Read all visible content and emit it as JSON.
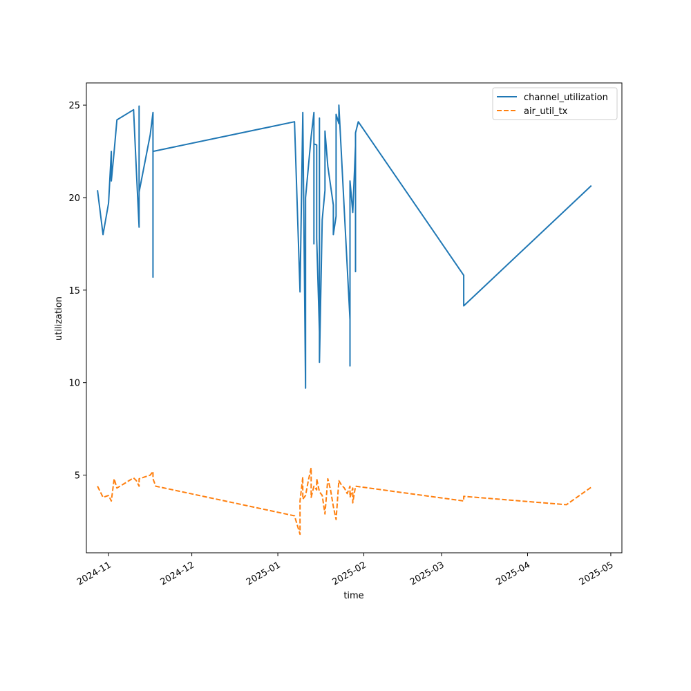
{
  "chart_data": {
    "type": "line",
    "title": "",
    "xlabel": "time",
    "ylabel": "utilization",
    "x_is_date": true,
    "xlim": [
      "2024-10-24",
      "2025-05-05"
    ],
    "ylim": [
      0.8,
      26.2
    ],
    "xticks": [
      "2024-11-01",
      "2024-12-01",
      "2025-01-01",
      "2025-02-01",
      "2025-03-01",
      "2025-04-01",
      "2025-05-01"
    ],
    "xtick_labels": [
      "2024-11",
      "2024-12",
      "2025-01",
      "2025-02",
      "2025-03",
      "2025-04",
      "2025-05"
    ],
    "yticks": [
      5,
      10,
      15,
      20,
      25
    ],
    "ytick_labels": [
      "5",
      "10",
      "15",
      "20",
      "25"
    ],
    "grid": false,
    "legend": "top-right",
    "series": [
      {
        "name": "channel_utilization",
        "color": "#1f77b4",
        "style": "solid",
        "points": [
          [
            "2024-10-28",
            20.4
          ],
          [
            "2024-10-30",
            18.0
          ],
          [
            "2024-11-01",
            19.7
          ],
          [
            "2024-11-02",
            22.5
          ],
          [
            "2024-11-02",
            20.9
          ],
          [
            "2024-11-03",
            22.5
          ],
          [
            "2024-11-04",
            24.2
          ],
          [
            "2024-11-10",
            24.75
          ],
          [
            "2024-11-11",
            21.5
          ],
          [
            "2024-11-12",
            18.4
          ],
          [
            "2024-11-12",
            24.95
          ],
          [
            "2024-11-12",
            20.3
          ],
          [
            "2024-11-16",
            23.4
          ],
          [
            "2024-11-17",
            24.6
          ],
          [
            "2024-11-17",
            15.7
          ],
          [
            "2024-11-17",
            22.5
          ],
          [
            "2025-01-07",
            24.1
          ],
          [
            "2025-01-09",
            14.9
          ],
          [
            "2025-01-10",
            24.6
          ],
          [
            "2025-01-11",
            9.7
          ],
          [
            "2025-01-11",
            20.0
          ],
          [
            "2025-01-13",
            23.3
          ],
          [
            "2025-01-14",
            24.6
          ],
          [
            "2025-01-14",
            17.5
          ],
          [
            "2025-01-14",
            22.9
          ],
          [
            "2025-01-15",
            22.85
          ],
          [
            "2025-01-15",
            17.8
          ],
          [
            "2025-01-16",
            12.75
          ],
          [
            "2025-01-16",
            24.3
          ],
          [
            "2025-01-16",
            11.1
          ],
          [
            "2025-01-17",
            18.8
          ],
          [
            "2025-01-18",
            20.4
          ],
          [
            "2025-01-18",
            23.6
          ],
          [
            "2025-01-19",
            21.7
          ],
          [
            "2025-01-21",
            19.6
          ],
          [
            "2025-01-21",
            18.0
          ],
          [
            "2025-01-22",
            19.0
          ],
          [
            "2025-01-22",
            24.5
          ],
          [
            "2025-01-23",
            24.0
          ],
          [
            "2025-01-23",
            25.0
          ],
          [
            "2025-01-25",
            19.2
          ],
          [
            "2025-01-27",
            13.4
          ],
          [
            "2025-01-27",
            10.9
          ],
          [
            "2025-01-27",
            20.9
          ],
          [
            "2025-01-28",
            19.2
          ],
          [
            "2025-01-29",
            22.8
          ],
          [
            "2025-01-29",
            16.0
          ],
          [
            "2025-01-29",
            23.5
          ],
          [
            "2025-01-30",
            24.1
          ],
          [
            "2025-03-09",
            15.8
          ],
          [
            "2025-03-09",
            14.15
          ],
          [
            "2025-04-24",
            20.65
          ]
        ]
      },
      {
        "name": "air_util_tx",
        "color": "#ff7f0e",
        "style": "dashed",
        "points": [
          [
            "2024-10-28",
            4.4
          ],
          [
            "2024-10-30",
            3.8
          ],
          [
            "2024-11-01",
            3.9
          ],
          [
            "2024-11-02",
            3.6
          ],
          [
            "2024-11-03",
            4.8
          ],
          [
            "2024-11-04",
            4.3
          ],
          [
            "2024-11-10",
            4.85
          ],
          [
            "2024-11-11",
            4.7
          ],
          [
            "2024-11-12",
            4.4
          ],
          [
            "2024-11-12",
            4.8
          ],
          [
            "2024-11-16",
            5.0
          ],
          [
            "2024-11-17",
            5.2
          ],
          [
            "2024-11-17",
            4.8
          ],
          [
            "2024-11-18",
            4.4
          ],
          [
            "2025-01-07",
            2.8
          ],
          [
            "2025-01-09",
            1.8
          ],
          [
            "2025-01-09",
            3.6
          ],
          [
            "2025-01-10",
            4.9
          ],
          [
            "2025-01-10",
            3.7
          ],
          [
            "2025-01-11",
            3.9
          ],
          [
            "2025-01-12",
            4.7
          ],
          [
            "2025-01-13",
            5.4
          ],
          [
            "2025-01-13",
            3.8
          ],
          [
            "2025-01-14",
            4.4
          ],
          [
            "2025-01-15",
            4.2
          ],
          [
            "2025-01-15",
            4.8
          ],
          [
            "2025-01-16",
            4.1
          ],
          [
            "2025-01-17",
            3.9
          ],
          [
            "2025-01-18",
            2.9
          ],
          [
            "2025-01-19",
            4.8
          ],
          [
            "2025-01-20",
            4.2
          ],
          [
            "2025-01-21",
            3.3
          ],
          [
            "2025-01-22",
            2.6
          ],
          [
            "2025-01-23",
            4.7
          ],
          [
            "2025-01-24",
            4.45
          ],
          [
            "2025-01-25",
            4.3
          ],
          [
            "2025-01-26",
            4.0
          ],
          [
            "2025-01-27",
            4.4
          ],
          [
            "2025-01-27",
            3.8
          ],
          [
            "2025-01-28",
            4.3
          ],
          [
            "2025-01-28",
            3.5
          ],
          [
            "2025-01-29",
            4.4
          ],
          [
            "2025-03-09",
            3.6
          ],
          [
            "2025-03-09",
            3.85
          ],
          [
            "2025-04-15",
            3.4
          ],
          [
            "2025-04-24",
            4.35
          ]
        ]
      }
    ]
  }
}
